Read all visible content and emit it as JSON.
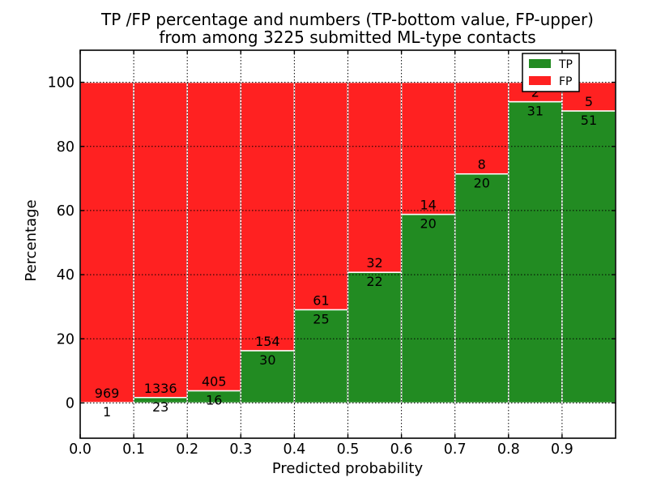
{
  "title": {
    "line1": "TP /FP percentage and numbers (TP-bottom value, FP-upper)",
    "line2": "from among 3225 submitted ML-type contacts"
  },
  "chart_data": {
    "type": "bar",
    "stacked": true,
    "normalized_to_percent": true,
    "title": "TP /FP percentage and numbers (TP-bottom value, FP-upper) from among 3225 submitted ML-type contacts",
    "xlabel": "Predicted probability",
    "ylabel": "Percentage",
    "bin_edges": [
      0.0,
      0.1,
      0.2,
      0.3,
      0.4,
      0.5,
      0.6,
      0.7,
      0.8,
      0.9,
      1.0
    ],
    "categories": [
      "0.0-0.1",
      "0.1-0.2",
      "0.2-0.3",
      "0.3-0.4",
      "0.4-0.5",
      "0.5-0.6",
      "0.6-0.7",
      "0.7-0.8",
      "0.8-0.9",
      "0.9-1.0"
    ],
    "series": [
      {
        "name": "TP",
        "color": "#228b22",
        "values": [
          1,
          23,
          16,
          30,
          25,
          22,
          20,
          20,
          31,
          51
        ]
      },
      {
        "name": "FP",
        "color": "#ff2121",
        "values": [
          969,
          1336,
          405,
          154,
          61,
          32,
          14,
          8,
          2,
          5
        ]
      }
    ],
    "tp_percent_by_bin": [
      0.1,
      1.7,
      3.8,
      16.3,
      29.1,
      40.7,
      58.8,
      71.4,
      93.9,
      91.1
    ],
    "total_contacts": 3225,
    "xlim": [
      0.0,
      1.0
    ],
    "ylim": [
      -11,
      110
    ],
    "xticks": [
      0.0,
      0.1,
      0.2,
      0.3,
      0.4,
      0.5,
      0.6,
      0.7,
      0.8,
      0.9
    ],
    "xtick_labels": [
      "0.0",
      "0.1",
      "0.2",
      "0.3",
      "0.4",
      "0.5",
      "0.6",
      "0.7",
      "0.8",
      "0.9"
    ],
    "yticks": [
      0,
      20,
      40,
      60,
      80,
      100
    ],
    "ytick_labels": [
      "0",
      "20",
      "40",
      "60",
      "80",
      "100"
    ],
    "grid": true,
    "grid_style": "dotted",
    "bar_edge_color": "#ffffff",
    "text_color": "#000000",
    "legend": {
      "position": "upper right",
      "entries": [
        {
          "label": "TP",
          "color": "#228b22"
        },
        {
          "label": "FP",
          "color": "#ff2121"
        }
      ]
    }
  }
}
